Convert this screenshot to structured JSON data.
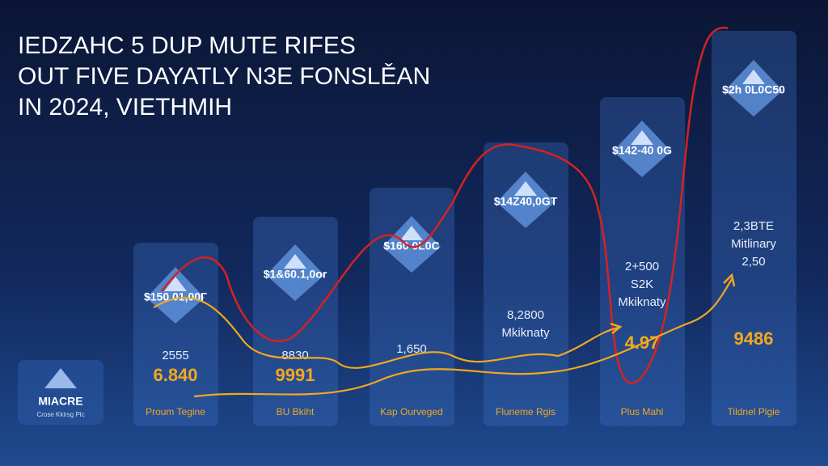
{
  "header": {
    "lines": [
      "IEDZAHC 5 DUP MUTE RIFES",
      "OUT FIVE DAYATLY N3E FONSLĚAN",
      "IN 2024, VIETHMIH"
    ]
  },
  "logo": {
    "title": "MIACRE",
    "subtitle": "Crose Kkirsg Plc"
  },
  "panels": [
    {
      "price": "$150 01,00Г",
      "stats": [
        "2555"
      ],
      "highlight": "6.840",
      "label": "Proum Tegine"
    },
    {
      "price": "$1&60.1,0or",
      "stats": [
        "8830"
      ],
      "highlight": "9991",
      "label": "BU Bkiht"
    },
    {
      "price": "$160 0L0C",
      "stats": [
        "1,650"
      ],
      "label": "Kap Ourveged"
    },
    {
      "price": "$14Z40,0GT",
      "stats": [
        "8,2800",
        "Mkiknaty"
      ],
      "label": "Fluneme Rgis"
    },
    {
      "price": "$142-40 0G",
      "stats": [
        "2+500",
        "S2K",
        "Mkiknaty"
      ],
      "highlight": "4.97",
      "label": "Plus Mahl"
    },
    {
      "price": "$2h 0L0C50",
      "stats": [
        "2,3BTE",
        "Mitlinary",
        "2,50"
      ],
      "highlight": "9486",
      "label": "Tildnel Plgie"
    }
  ]
}
